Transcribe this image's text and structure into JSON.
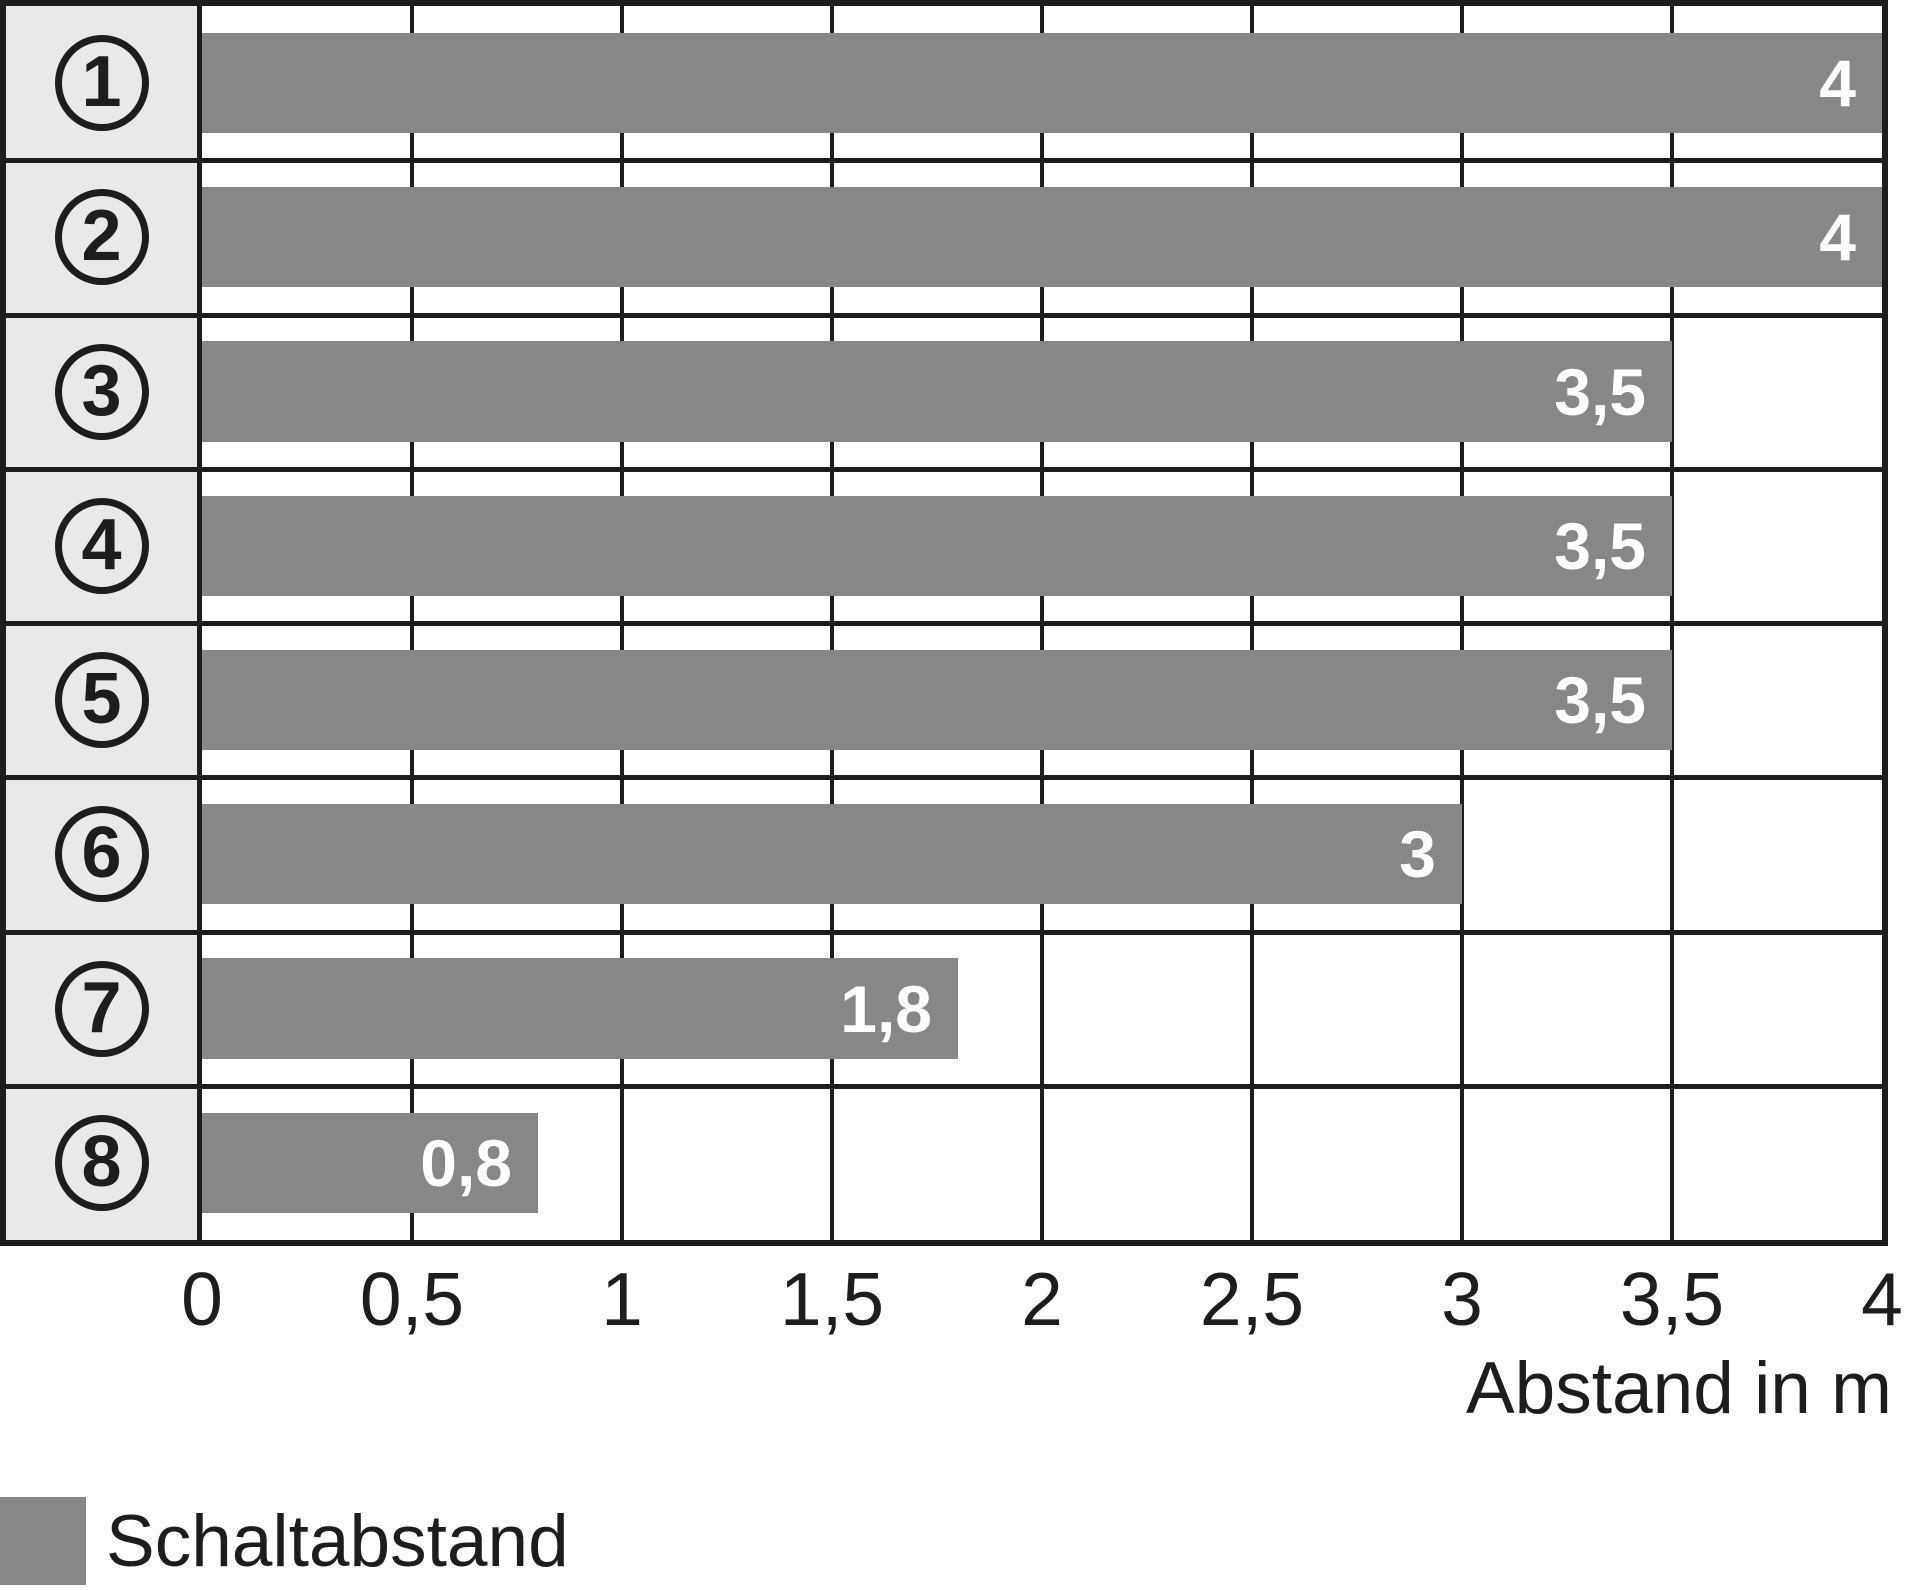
{
  "chart_data": {
    "type": "bar",
    "orientation": "horizontal",
    "categories": [
      "1",
      "2",
      "3",
      "4",
      "5",
      "6",
      "7",
      "8"
    ],
    "values": [
      4,
      4,
      3.5,
      3.5,
      3.5,
      3,
      1.8,
      0.8
    ],
    "value_labels": [
      "4",
      "4",
      "3,5",
      "3,5",
      "3,5",
      "3",
      "1,8",
      "0,8"
    ],
    "xlabel": "Abstand in m",
    "ylabel": "",
    "xlim": [
      0,
      4
    ],
    "x_ticks": [
      0,
      0.5,
      1,
      1.5,
      2,
      2.5,
      3,
      3.5,
      4
    ],
    "x_tick_labels": [
      "0",
      "0,5",
      "1",
      "1,5",
      "2",
      "2,5",
      "3",
      "3,5",
      "4"
    ],
    "grid": true,
    "legend": {
      "label": "Schaltabstand",
      "position": "bottom-left"
    },
    "colors": {
      "bar": "#87878a",
      "category_column_bg": "#e9e9e9",
      "line": "#1d1d1b",
      "value_label": "#ffffff",
      "text": "#1d1d1b"
    }
  }
}
